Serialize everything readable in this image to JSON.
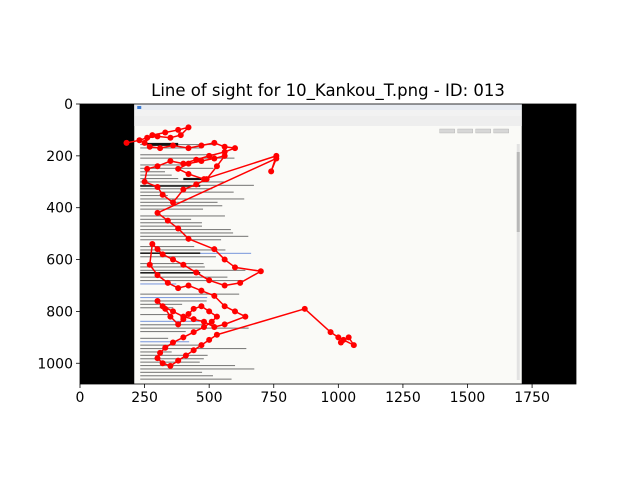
{
  "chart_data": {
    "type": "line",
    "title": "Line of sight for 10_Kankou_T.png - ID: 013",
    "xlabel": "",
    "ylabel": "",
    "xlim": [
      0,
      1920
    ],
    "ylim": [
      1080,
      0
    ],
    "x_ticks": [
      0,
      250,
      500,
      750,
      1000,
      1250,
      1500,
      1750
    ],
    "y_ticks": [
      0,
      200,
      400,
      600,
      800,
      1000
    ],
    "background_image": {
      "description": "email client window (Mozilla Thunderbird) screenshot",
      "x_range": [
        210,
        1710
      ],
      "y_range": [
        0,
        1080
      ],
      "letterbox_color": "#000000"
    },
    "series": [
      {
        "color": "#ff0000",
        "x": [
          180,
          230,
          260,
          300,
          350,
          390,
          420,
          380,
          330,
          280,
          250,
          270,
          310,
          360,
          420,
          470,
          520,
          560,
          600,
          560,
          500,
          450,
          400,
          350,
          300,
          260,
          250,
          300,
          320,
          360,
          400,
          450,
          490,
          530,
          560,
          520,
          470,
          420,
          380,
          420,
          480,
          760,
          740,
          760,
          300,
          340,
          380,
          420,
          520,
          560,
          600,
          700,
          620,
          560,
          500,
          450,
          400,
          360,
          320,
          300,
          280,
          270,
          300,
          340,
          380,
          420,
          470,
          520,
          560,
          600,
          640,
          560,
          520,
          480,
          440,
          400,
          360,
          320,
          300,
          330,
          350,
          380,
          400,
          420,
          440,
          470,
          500,
          530,
          510,
          480,
          440,
          400,
          360,
          330,
          310,
          300,
          320,
          350,
          380,
          410,
          440,
          470,
          500,
          530,
          870,
          970,
          1000,
          1020,
          1060,
          1040,
          1010
        ],
        "y": [
          150,
          140,
          130,
          125,
          130,
          120,
          90,
          100,
          110,
          120,
          150,
          165,
          170,
          160,
          170,
          160,
          150,
          165,
          170,
          185,
          200,
          215,
          230,
          220,
          240,
          250,
          300,
          320,
          350,
          380,
          330,
          310,
          290,
          240,
          200,
          210,
          220,
          230,
          250,
          270,
          290,
          200,
          260,
          210,
          420,
          450,
          480,
          520,
          560,
          600,
          630,
          645,
          690,
          700,
          680,
          650,
          620,
          600,
          580,
          560,
          540,
          620,
          660,
          690,
          710,
          700,
          720,
          740,
          780,
          800,
          820,
          850,
          860,
          840,
          830,
          820,
          800,
          780,
          760,
          790,
          820,
          850,
          830,
          810,
          790,
          780,
          800,
          820,
          840,
          860,
          880,
          900,
          920,
          940,
          960,
          980,
          1000,
          1010,
          990,
          970,
          950,
          930,
          910,
          890,
          790,
          880,
          900,
          910,
          930,
          900,
          920
        ]
      }
    ]
  },
  "colors": {
    "letterbox": "#000000",
    "gaze": "#ff0000",
    "document_bg": "#fafaf7",
    "text_lines": "#555555",
    "link": "#5a7fd6"
  }
}
